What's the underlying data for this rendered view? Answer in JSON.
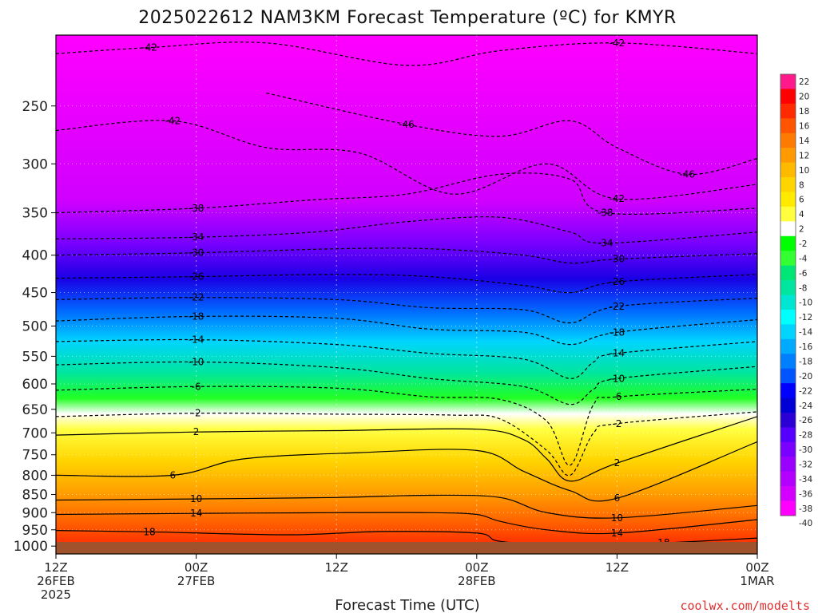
{
  "chart_data": {
    "type": "heatmap",
    "title": "2025022612 NAM3KM Forecast Temperature (ºC) for KMYR",
    "xlabel": "Forecast Time (UTC)",
    "ylabel": "",
    "credit": "coolwx.com/modelts",
    "x_ticks": [
      {
        "hour": 0,
        "lines": [
          "12Z",
          "26FEB",
          "2025"
        ]
      },
      {
        "hour": 12,
        "lines": [
          "00Z",
          "27FEB"
        ]
      },
      {
        "hour": 24,
        "lines": [
          "12Z"
        ]
      },
      {
        "hour": 36,
        "lines": [
          "00Z",
          "28FEB"
        ]
      },
      {
        "hour": 48,
        "lines": [
          "12Z"
        ]
      },
      {
        "hour": 60,
        "lines": [
          "00Z",
          "1MAR"
        ]
      }
    ],
    "x_range_hours": [
      0,
      60
    ],
    "y_ticks": [
      250,
      300,
      350,
      400,
      450,
      500,
      550,
      600,
      650,
      700,
      750,
      800,
      850,
      900,
      950,
      1000
    ],
    "y_range_hpa": [
      200,
      1025
    ],
    "y_scale": "log",
    "grid": true,
    "colorbar_levels": [
      22,
      20,
      18,
      16,
      14,
      12,
      10,
      8,
      6,
      4,
      2,
      -2,
      -4,
      -6,
      -8,
      -10,
      -12,
      -14,
      -16,
      -18,
      -20,
      -22,
      -24,
      -26,
      -28,
      -30,
      -32,
      -34,
      -36,
      -38,
      -40
    ],
    "colorbar_colors": [
      "#ff1a8c",
      "#ff0000",
      "#ff2a00",
      "#ff5500",
      "#ff7a00",
      "#ff9a00",
      "#ffba00",
      "#ffd500",
      "#ffea00",
      "#ffff40",
      "#ffffff",
      "#00ff00",
      "#33ff33",
      "#00e676",
      "#00e6a0",
      "#00e6d2",
      "#00ffff",
      "#00d4ff",
      "#00aaff",
      "#0080ff",
      "#0055ff",
      "#0000ff",
      "#0000d4",
      "#2a00d4",
      "#5500ff",
      "#7a00ff",
      "#9a00ff",
      "#b400ff",
      "#d400ff",
      "#ff00ff"
    ],
    "series": [
      {
        "temp": -42,
        "points": [
          [
            0,
            212
          ],
          [
            8,
            208
          ],
          [
            18,
            205
          ],
          [
            30,
            220
          ],
          [
            38,
            210
          ],
          [
            48,
            205
          ],
          [
            60,
            212
          ]
        ]
      },
      {
        "temp": -46,
        "points": [
          [
            18,
            240
          ],
          [
            30,
            265
          ],
          [
            38,
            275
          ],
          [
            44,
            262
          ],
          [
            48,
            285
          ],
          [
            54,
            310
          ],
          [
            60,
            295
          ]
        ]
      },
      {
        "temp": -42,
        "points": [
          [
            0,
            270
          ],
          [
            10,
            262
          ],
          [
            18,
            285
          ],
          [
            26,
            290
          ],
          [
            34,
            330
          ],
          [
            42,
            300
          ],
          [
            48,
            335
          ],
          [
            60,
            320
          ]
        ]
      },
      {
        "temp": -38,
        "points": [
          [
            0,
            350
          ],
          [
            12,
            345
          ],
          [
            22,
            336
          ],
          [
            30,
            330
          ],
          [
            38,
            310
          ],
          [
            44,
            315
          ],
          [
            47,
            350
          ],
          [
            60,
            345
          ]
        ]
      },
      {
        "temp": -34,
        "points": [
          [
            0,
            380
          ],
          [
            12,
            378
          ],
          [
            22,
            372
          ],
          [
            30,
            360
          ],
          [
            38,
            355
          ],
          [
            44,
            372
          ],
          [
            47,
            385
          ],
          [
            60,
            372
          ]
        ]
      },
      {
        "temp": -30,
        "points": [
          [
            0,
            400
          ],
          [
            12,
            397
          ],
          [
            24,
            392
          ],
          [
            32,
            392
          ],
          [
            40,
            400
          ],
          [
            44,
            410
          ],
          [
            48,
            405
          ],
          [
            60,
            398
          ]
        ]
      },
      {
        "temp": -26,
        "points": [
          [
            0,
            430
          ],
          [
            12,
            428
          ],
          [
            24,
            425
          ],
          [
            32,
            428
          ],
          [
            40,
            440
          ],
          [
            44,
            450
          ],
          [
            48,
            435
          ],
          [
            60,
            425
          ]
        ]
      },
      {
        "temp": -22,
        "points": [
          [
            0,
            460
          ],
          [
            12,
            457
          ],
          [
            24,
            460
          ],
          [
            32,
            472
          ],
          [
            40,
            475
          ],
          [
            44,
            495
          ],
          [
            48,
            470
          ],
          [
            60,
            458
          ]
        ]
      },
      {
        "temp": -18,
        "points": [
          [
            0,
            492
          ],
          [
            12,
            485
          ],
          [
            24,
            488
          ],
          [
            32,
            505
          ],
          [
            40,
            510
          ],
          [
            44,
            530
          ],
          [
            48,
            510
          ],
          [
            60,
            490
          ]
        ]
      },
      {
        "temp": -14,
        "points": [
          [
            0,
            525
          ],
          [
            12,
            522
          ],
          [
            24,
            530
          ],
          [
            32,
            545
          ],
          [
            40,
            555
          ],
          [
            44,
            590
          ],
          [
            46,
            560
          ],
          [
            48,
            545
          ],
          [
            60,
            525
          ]
        ]
      },
      {
        "temp": -10,
        "points": [
          [
            0,
            565
          ],
          [
            12,
            560
          ],
          [
            24,
            570
          ],
          [
            32,
            590
          ],
          [
            40,
            605
          ],
          [
            44,
            640
          ],
          [
            46,
            610
          ],
          [
            48,
            590
          ],
          [
            60,
            568
          ]
        ]
      },
      {
        "temp": -6,
        "points": [
          [
            0,
            612
          ],
          [
            12,
            605
          ],
          [
            24,
            608
          ],
          [
            32,
            625
          ],
          [
            38,
            630
          ],
          [
            42,
            675
          ],
          [
            44,
            775
          ],
          [
            46,
            640
          ],
          [
            48,
            625
          ],
          [
            60,
            610
          ]
        ]
      },
      {
        "temp": -2,
        "points": [
          [
            0,
            665
          ],
          [
            12,
            658
          ],
          [
            24,
            660
          ],
          [
            34,
            662
          ],
          [
            38,
            670
          ],
          [
            42,
            740
          ],
          [
            44,
            800
          ],
          [
            46,
            700
          ],
          [
            48,
            680
          ],
          [
            60,
            655
          ]
        ]
      },
      {
        "temp": 2,
        "points": [
          [
            0,
            705
          ],
          [
            12,
            698
          ],
          [
            24,
            695
          ],
          [
            36,
            692
          ],
          [
            40,
            715
          ],
          [
            42,
            760
          ],
          [
            44,
            815
          ],
          [
            48,
            770
          ],
          [
            60,
            665
          ]
        ]
      },
      {
        "temp": 6,
        "points": [
          [
            0,
            800
          ],
          [
            10,
            800
          ],
          [
            16,
            760
          ],
          [
            26,
            745
          ],
          [
            36,
            740
          ],
          [
            40,
            790
          ],
          [
            44,
            840
          ],
          [
            48,
            860
          ],
          [
            60,
            720
          ]
        ]
      },
      {
        "temp": 10,
        "points": [
          [
            0,
            865
          ],
          [
            12,
            862
          ],
          [
            24,
            858
          ],
          [
            32,
            852
          ],
          [
            38,
            858
          ],
          [
            42,
            900
          ],
          [
            48,
            915
          ],
          [
            60,
            880
          ]
        ]
      },
      {
        "temp": 14,
        "points": [
          [
            0,
            905
          ],
          [
            12,
            902
          ],
          [
            24,
            900
          ],
          [
            32,
            900
          ],
          [
            36,
            905
          ],
          [
            38,
            925
          ],
          [
            42,
            950
          ],
          [
            48,
            960
          ],
          [
            60,
            920
          ]
        ]
      },
      {
        "temp": 18,
        "points": [
          [
            0,
            952
          ],
          [
            8,
            956
          ],
          [
            20,
            965
          ],
          [
            28,
            955
          ],
          [
            36,
            960
          ],
          [
            38,
            985
          ],
          [
            44,
            1000
          ],
          [
            52,
            990
          ],
          [
            60,
            975
          ]
        ]
      }
    ]
  }
}
